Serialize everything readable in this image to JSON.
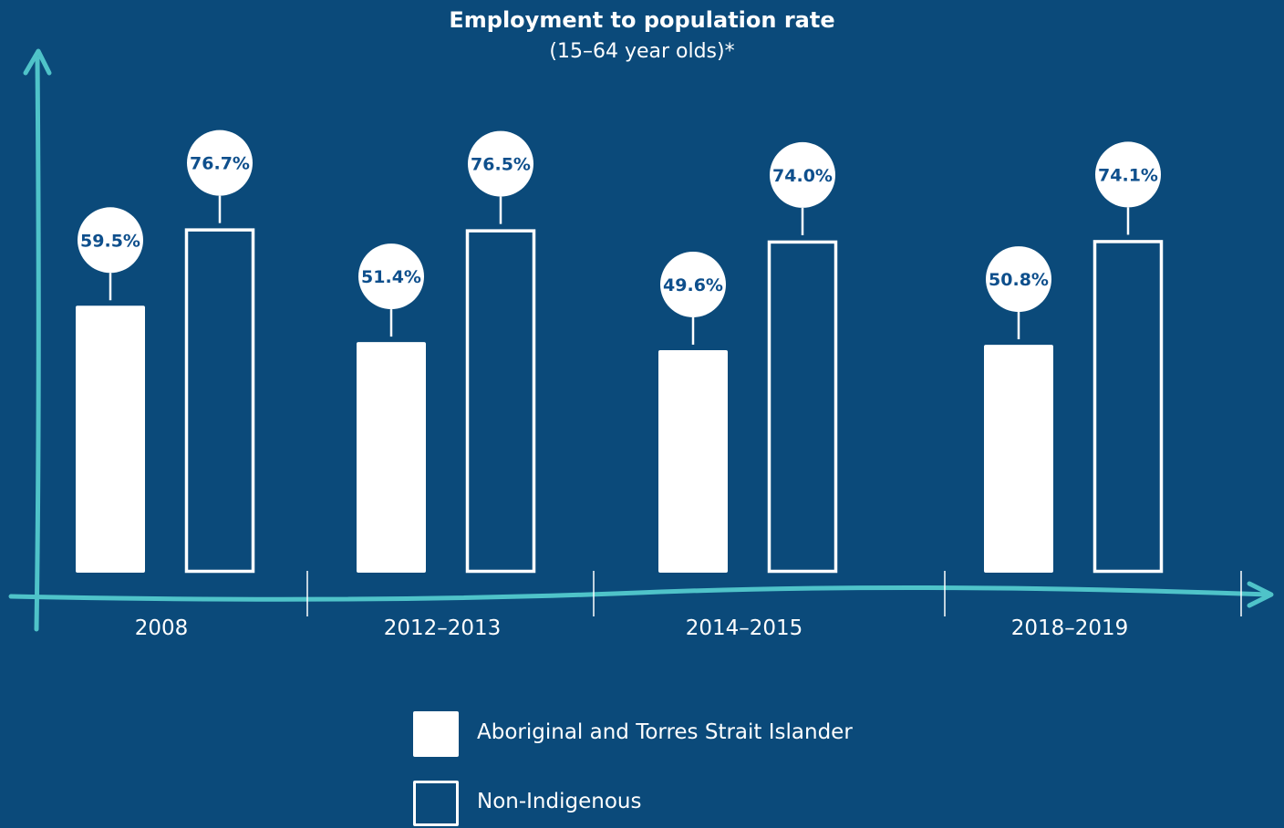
{
  "colors": {
    "background": "#0b4a7a",
    "axis": "#4fc3c9",
    "bar": "#ffffff",
    "label_text": "#0e4f8c"
  },
  "chart_data": {
    "type": "bar",
    "title": "Employment to population rate",
    "subtitle": "(15–64 year olds)*",
    "categories": [
      "2008",
      "2012–2013",
      "2014–2015",
      "2018–2019"
    ],
    "series": [
      {
        "name": "Aboriginal and Torres Strait Islander",
        "style": "filled",
        "values": [
          59.5,
          51.4,
          49.6,
          50.8
        ],
        "labels": [
          "59.5%",
          "51.4%",
          "49.6%",
          "50.8%"
        ]
      },
      {
        "name": "Non-Indigenous",
        "style": "outlined",
        "values": [
          76.7,
          76.5,
          74.0,
          74.1
        ],
        "labels": [
          "76.7%",
          "76.5%",
          "74.0%",
          "74.1%"
        ]
      }
    ],
    "ylim": [
      0,
      90
    ],
    "grid": false,
    "legend_position": "bottom-center"
  }
}
